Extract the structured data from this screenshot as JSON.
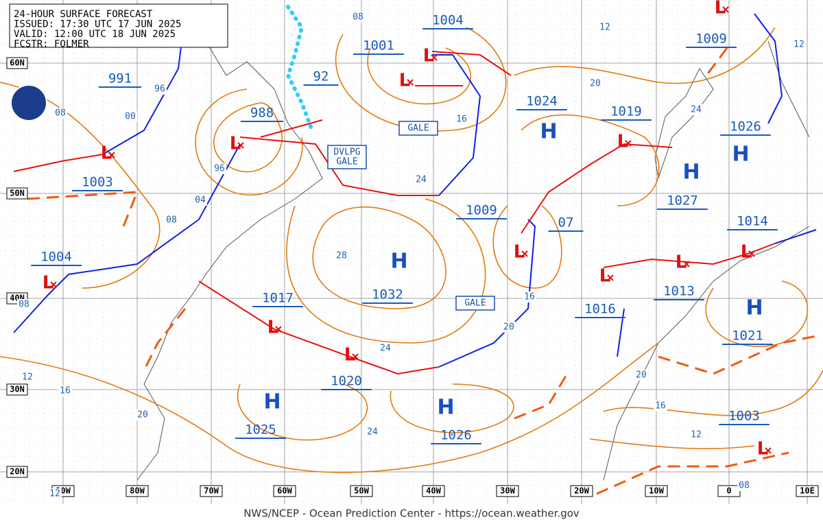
{
  "header": {
    "lines": [
      "24-HOUR SURFACE FORECAST",
      "ISSUED: 17:30 UTC 17 JUN 2025",
      "VALID: 12:00 UTC 18 JUN 2025",
      "FCSTR: FOLMER"
    ]
  },
  "lat_labels": [
    "60N",
    "50N",
    "40N",
    "30N",
    "20N"
  ],
  "lon_labels": [
    "90W",
    "80W",
    "70W",
    "60W",
    "50W",
    "40W",
    "30W",
    "20W",
    "10W",
    "0",
    "10E"
  ],
  "pressure_labels": [
    "991",
    "988",
    "1003",
    "1004",
    "1001",
    "1004",
    "92",
    "1024",
    "1019",
    "1009",
    "1026",
    "1009",
    "07",
    "1027",
    "1014",
    "1017",
    "1032",
    "1016",
    "1013",
    "1021",
    "1020",
    "1025",
    "1026",
    "1003"
  ],
  "highs": [
    "H",
    "H",
    "H",
    "H",
    "H",
    "H",
    "H"
  ],
  "lows": [
    "L",
    "L",
    "L",
    "L",
    "L",
    "L",
    "L",
    "L",
    "L",
    "L",
    "L",
    "L",
    "L",
    "L"
  ],
  "isobar_labels": [
    "96",
    "00",
    "08",
    "96",
    "04",
    "08",
    "08",
    "12",
    "20",
    "16",
    "24",
    "12",
    "24",
    "28",
    "16",
    "20",
    "24",
    "12",
    "16",
    "20",
    "24",
    "20",
    "16",
    "12",
    "08",
    "12",
    "08"
  ],
  "warnings": [
    {
      "lines": [
        "GALE"
      ]
    },
    {
      "lines": [
        "DVLPG",
        "GALE"
      ]
    },
    {
      "lines": [
        "GALE"
      ]
    }
  ],
  "footer": "NWS/NCEP - Ocean Prediction Center - https://ocean.weather.gov"
}
